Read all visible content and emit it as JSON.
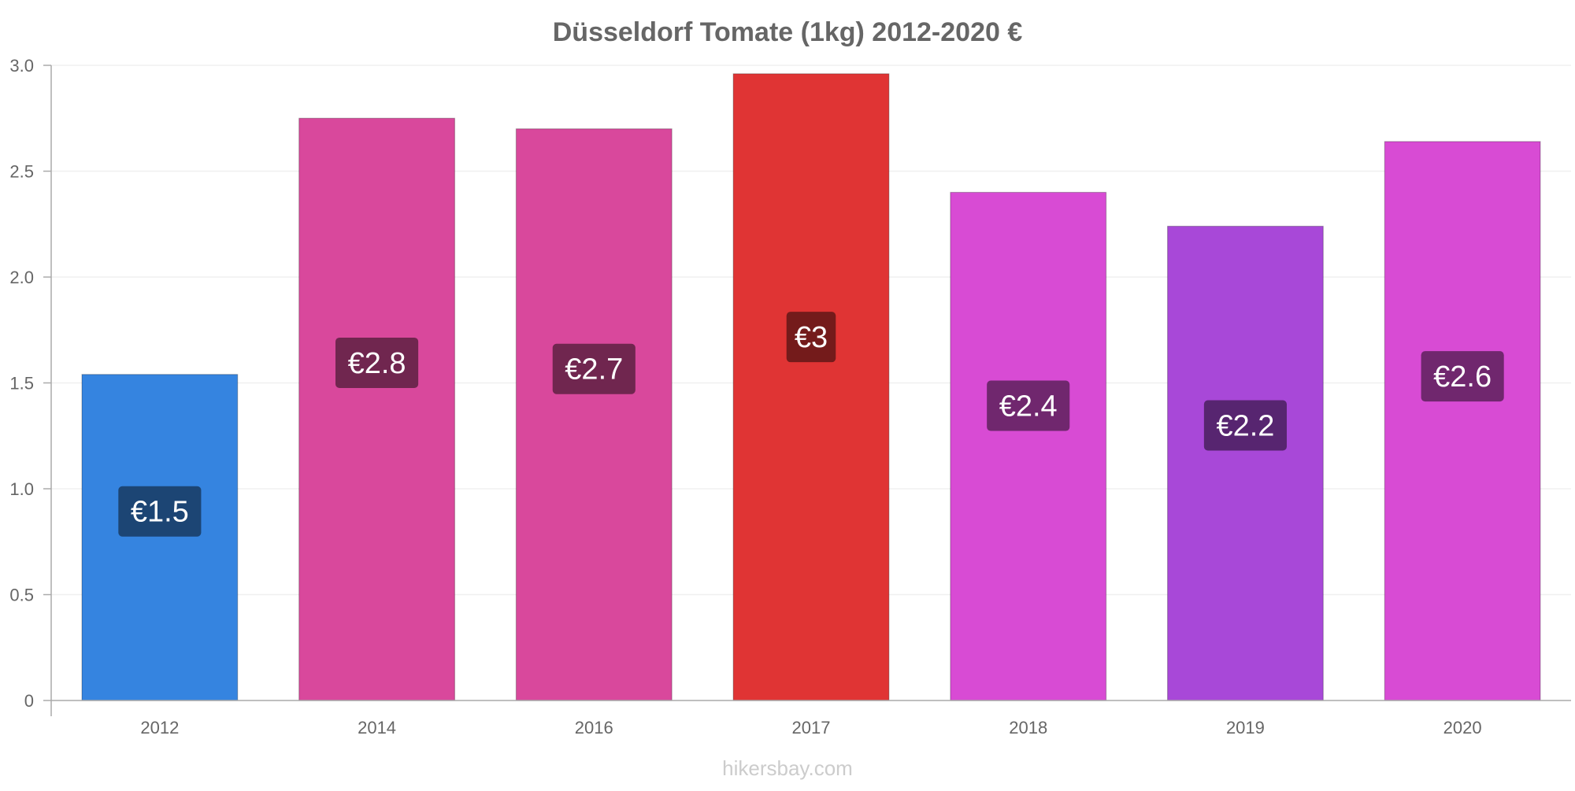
{
  "chart_data": {
    "type": "bar",
    "title": "Düsseldorf Tomate (1kg) 2012-2020 €",
    "xlabel": "",
    "ylabel": "",
    "categories": [
      "2012",
      "2014",
      "2016",
      "2017",
      "2018",
      "2019",
      "2020"
    ],
    "values": [
      1.54,
      2.75,
      2.7,
      2.96,
      2.4,
      2.24,
      2.64
    ],
    "data_labels": [
      "€1.5",
      "€2.8",
      "€2.7",
      "€3",
      "€2.4",
      "€2.2",
      "€2.6"
    ],
    "bar_colors": [
      "#3584e0",
      "#d9489c",
      "#d9489c",
      "#e03434",
      "#d84bd4",
      "#a848d8",
      "#d84bd4"
    ],
    "label_bg_colors": [
      "#1c4574",
      "#70264f",
      "#70264f",
      "#741b1b",
      "#70276e",
      "#572570",
      "#70276e"
    ],
    "ylim": [
      0,
      3.0
    ],
    "y_ticks": [
      0,
      0.5,
      1.0,
      1.5,
      2.0,
      2.5,
      3.0
    ],
    "y_tick_labels": [
      "0",
      "0.5",
      "1.0",
      "1.5",
      "2.0",
      "2.5",
      "3.0"
    ],
    "grid": true,
    "legend": "none"
  },
  "footer": {
    "watermark": "hikersbay.com"
  }
}
